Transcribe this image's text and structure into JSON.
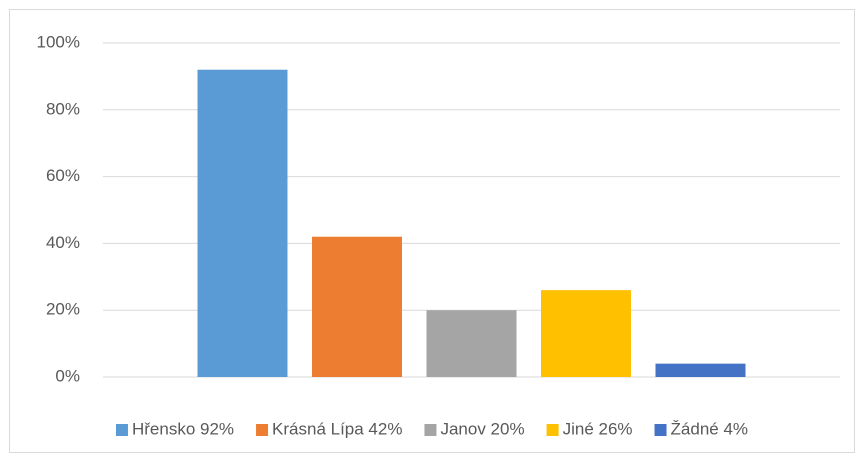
{
  "chart_data": {
    "type": "bar",
    "categories": [
      null
    ],
    "series": [
      {
        "name": "Hřensko 92%",
        "color": "#5b9bd5",
        "values": [
          92
        ]
      },
      {
        "name": "Krásná Lípa 42%",
        "color": "#ed7d31",
        "values": [
          42
        ]
      },
      {
        "name": "Janov 20%",
        "color": "#a5a5a5",
        "values": [
          20
        ]
      },
      {
        "name": "Jiné 26%",
        "color": "#ffc000",
        "values": [
          26
        ]
      },
      {
        "name": "Žádné 4%",
        "color": "#4472c4",
        "values": [
          4
        ]
      }
    ],
    "ylim": [
      0,
      100
    ],
    "yticks": [
      {
        "value": 0,
        "label": "0%"
      },
      {
        "value": 20,
        "label": "20%"
      },
      {
        "value": 40,
        "label": "40%"
      },
      {
        "value": 60,
        "label": "60%"
      },
      {
        "value": 80,
        "label": "80%"
      },
      {
        "value": 100,
        "label": "100%"
      }
    ],
    "grid": true,
    "legend": "bottom"
  }
}
